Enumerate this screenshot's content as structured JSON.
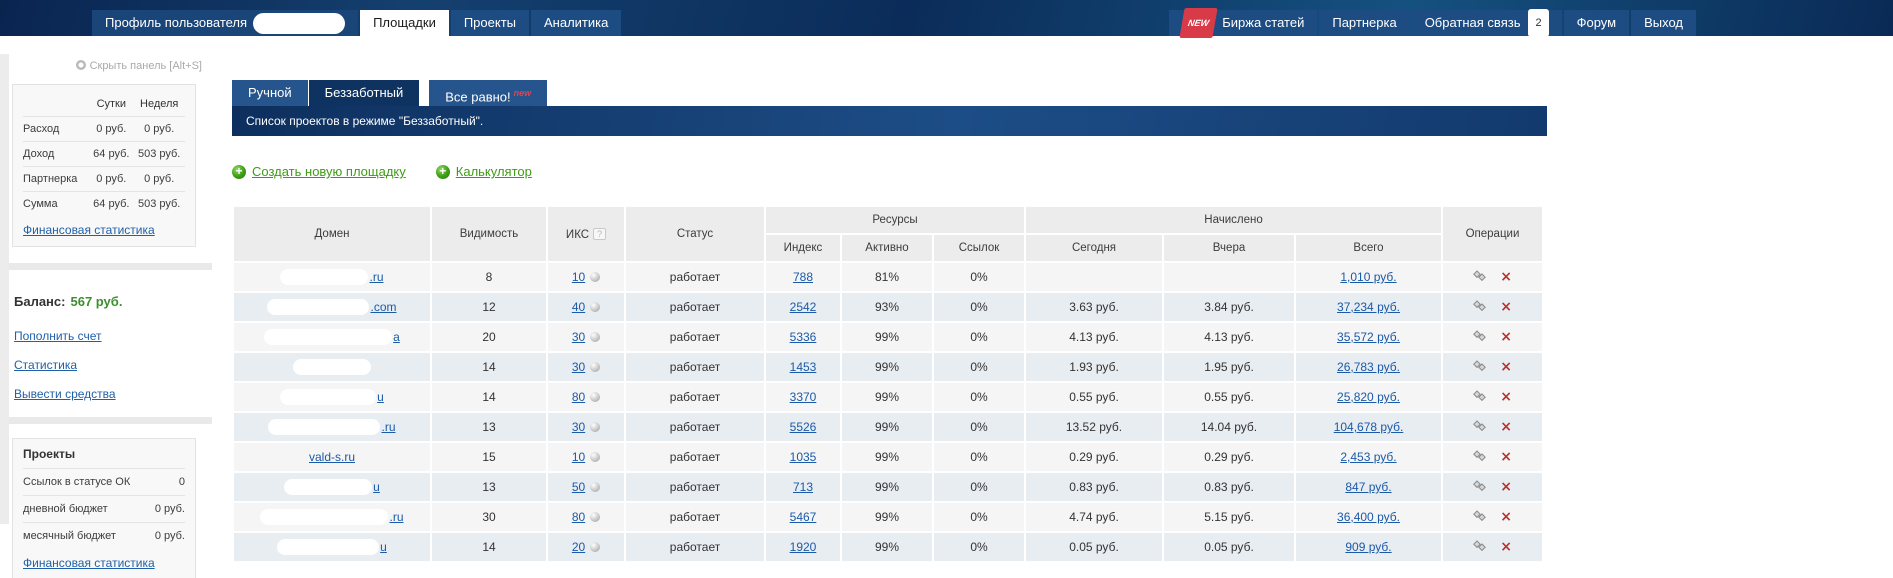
{
  "colors": {
    "topbar_navy": "#0d2f5e",
    "nav_button_blue": "#1d4c83",
    "active_mode_tab": "#0e3361",
    "new_badge_red": "#d93a47",
    "green_link": "#3f9c16",
    "balance_green": "#3c8f2e",
    "link_blue": "#1b5aa8",
    "row_odd": "#f5f5f5",
    "row_even": "#e8edf2",
    "delete_red": "#b23530"
  },
  "topbar": {
    "profile_label": "Профиль пользователя",
    "tabs": [
      {
        "label": "Площадки",
        "active": true
      },
      {
        "label": "Проекты",
        "active": false
      },
      {
        "label": "Аналитика",
        "active": false
      }
    ],
    "right_items": [
      {
        "label": "Биржа статей",
        "badge": "NEW"
      },
      {
        "label": "Партнерка"
      },
      {
        "label": "Обратная связь",
        "count": "2"
      },
      {
        "label": "Форум"
      },
      {
        "label": "Выход"
      }
    ]
  },
  "sidebar": {
    "hide_panel": "Скрыть панель [Alt+S]",
    "stats": {
      "col_day": "Сутки",
      "col_week": "Неделя",
      "rows": [
        [
          "Расход",
          "0 руб.",
          "0 руб."
        ],
        [
          "Доход",
          "64 руб.",
          "503 руб."
        ],
        [
          "Партнерка",
          "0 руб.",
          "0 руб."
        ],
        [
          "Сумма",
          "64 руб.",
          "503 руб."
        ]
      ],
      "link": "Финансовая статистика"
    },
    "balance_label": "Баланс:",
    "balance_value": "567 руб.",
    "links": [
      "Пополнить счет",
      "Статистика",
      "Вывести средства"
    ],
    "projects": {
      "title": "Проекты",
      "rows": [
        [
          "Ссылок в статусе ОК",
          "0"
        ],
        [
          "дневной бюджет",
          "0 руб."
        ],
        [
          "месячный бюджет",
          "0 руб."
        ]
      ],
      "link": "Финансовая статистика"
    }
  },
  "main": {
    "mode_tabs": [
      {
        "label": "Ручной",
        "active": false
      },
      {
        "label": "Беззаботный",
        "active": true
      },
      {
        "label": "Все равно!",
        "active": false,
        "badge": "new"
      }
    ],
    "message": "Список проектов в режиме \"Беззаботный\".",
    "actions": [
      "Создать новую площадку",
      "Калькулятор"
    ],
    "table": {
      "headers": {
        "domain": "Домен",
        "visibility": "Видимость",
        "iks": "ИКС",
        "iks_help": "?",
        "status": "Статус",
        "resources": "Ресурсы",
        "index": "Индекс",
        "active": "Активно",
        "links": "Ссылок",
        "accrued": "Начислено",
        "today": "Сегодня",
        "yesterday": "Вчера",
        "total": "Всего",
        "operations": "Операции"
      },
      "rows": [
        {
          "domain": ".ru",
          "blurred": true,
          "visibility": "8",
          "iks": "10",
          "status": "работает",
          "index": "788",
          "active": "81%",
          "links_pct": "0%",
          "today": "",
          "yesterday": "",
          "total": "1,010 руб."
        },
        {
          "domain": ".com",
          "blurred": true,
          "visibility": "12",
          "iks": "40",
          "status": "работает",
          "index": "2542",
          "active": "93%",
          "links_pct": "0%",
          "today": "3.63 руб.",
          "yesterday": "3.84 руб.",
          "total": "37,234 руб."
        },
        {
          "domain": "a",
          "blurred": true,
          "visibility": "20",
          "iks": "30",
          "status": "работает",
          "index": "5336",
          "active": "99%",
          "links_pct": "0%",
          "today": "4.13 руб.",
          "yesterday": "4.13 руб.",
          "total": "35,572 руб."
        },
        {
          "domain": "",
          "blurred": true,
          "visibility": "14",
          "iks": "30",
          "status": "работает",
          "index": "1453",
          "active": "99%",
          "links_pct": "0%",
          "today": "1.93 руб.",
          "yesterday": "1.95 руб.",
          "total": "26,783 руб."
        },
        {
          "domain": "u",
          "blurred": true,
          "visibility": "14",
          "iks": "80",
          "status": "работает",
          "index": "3370",
          "active": "99%",
          "links_pct": "0%",
          "today": "0.55 руб.",
          "yesterday": "0.55 руб.",
          "total": "25,820 руб."
        },
        {
          "domain": ".ru",
          "blurred": true,
          "visibility": "13",
          "iks": "30",
          "status": "работает",
          "index": "5526",
          "active": "99%",
          "links_pct": "0%",
          "today": "13.52 руб.",
          "yesterday": "14.04 руб.",
          "total": "104,678 руб."
        },
        {
          "domain": "vald-s.ru",
          "blurred": false,
          "visibility": "15",
          "iks": "10",
          "status": "работает",
          "index": "1035",
          "active": "99%",
          "links_pct": "0%",
          "today": "0.29 руб.",
          "yesterday": "0.29 руб.",
          "total": "2,453 руб."
        },
        {
          "domain": "u",
          "blurred": true,
          "visibility": "13",
          "iks": "50",
          "status": "работает",
          "index": "713",
          "active": "99%",
          "links_pct": "0%",
          "today": "0.83 руб.",
          "yesterday": "0.83 руб.",
          "total": "847 руб."
        },
        {
          "domain": ".ru",
          "blurred": true,
          "visibility": "30",
          "iks": "80",
          "status": "работает",
          "index": "5467",
          "active": "99%",
          "links_pct": "0%",
          "today": "4.74 руб.",
          "yesterday": "5.15 руб.",
          "total": "36,400 руб."
        },
        {
          "domain": "u",
          "blurred": true,
          "visibility": "14",
          "iks": "20",
          "status": "работает",
          "index": "1920",
          "active": "99%",
          "links_pct": "0%",
          "today": "0.05 руб.",
          "yesterday": "0.05 руб.",
          "total": "909 руб."
        }
      ]
    }
  }
}
